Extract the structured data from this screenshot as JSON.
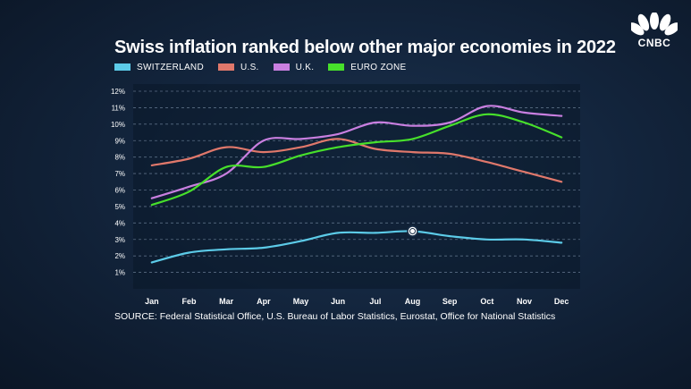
{
  "brand": {
    "logo_text": "CNBC"
  },
  "colors": {
    "switzerland": "#5ccbe8",
    "us": "#e0786b",
    "uk": "#c97fe0",
    "euro": "#47e02b"
  },
  "chart_data": {
    "type": "line",
    "title": "Swiss inflation ranked below other major economies in 2022",
    "categories": [
      "Jan",
      "Feb",
      "Mar",
      "Apr",
      "May",
      "Jun",
      "Jul",
      "Aug",
      "Sep",
      "Oct",
      "Nov",
      "Dec"
    ],
    "ylim": [
      0,
      12
    ],
    "yticks": [
      "1%",
      "2%",
      "3%",
      "4%",
      "5%",
      "6%",
      "7%",
      "8%",
      "9%",
      "10%",
      "11%",
      "12%"
    ],
    "grid": true,
    "legend_position": "top-left",
    "series": [
      {
        "name": "SWITZERLAND",
        "color": "#5ccbe8",
        "values": [
          1.6,
          2.2,
          2.4,
          2.5,
          2.9,
          3.4,
          3.4,
          3.5,
          3.2,
          3.0,
          3.0,
          2.8
        ]
      },
      {
        "name": "U.S.",
        "color": "#e0786b",
        "values": [
          7.5,
          7.9,
          8.6,
          8.3,
          8.6,
          9.1,
          8.5,
          8.3,
          8.2,
          7.7,
          7.1,
          6.5
        ]
      },
      {
        "name": "U.K.",
        "color": "#c97fe0",
        "values": [
          5.5,
          6.2,
          7.0,
          9.0,
          9.1,
          9.4,
          10.1,
          9.9,
          10.1,
          11.1,
          10.7,
          10.5
        ]
      },
      {
        "name": "EURO ZONE",
        "color": "#47e02b",
        "values": [
          5.1,
          5.9,
          7.4,
          7.4,
          8.1,
          8.6,
          8.9,
          9.1,
          9.9,
          10.6,
          10.1,
          9.2
        ]
      }
    ],
    "highlight": {
      "series": "SWITZERLAND",
      "category": "Aug"
    }
  },
  "source": "SOURCE: Federal Statistical Office, U.S. Bureau of Labor Statistics, Eurostat, Office for National Statistics"
}
